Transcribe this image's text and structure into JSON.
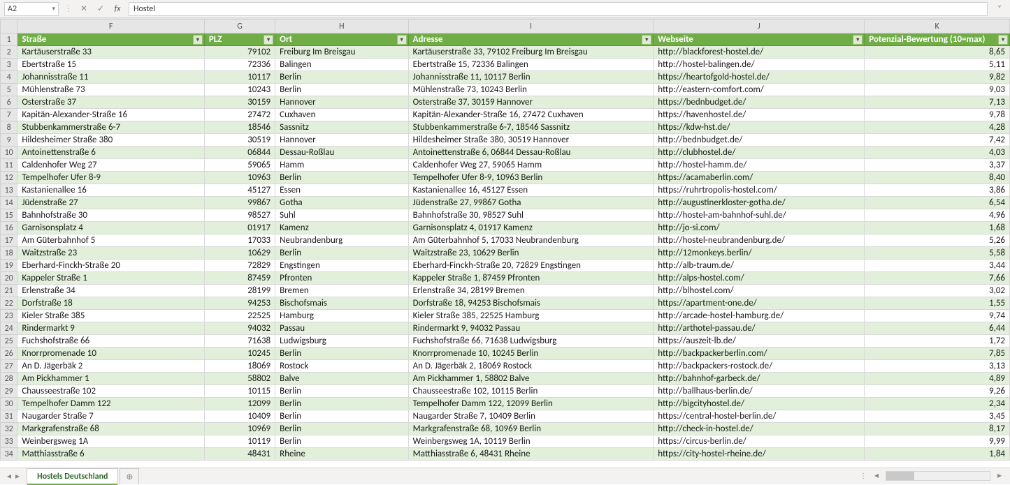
{
  "formula_bar": {
    "name_box": "A2",
    "cancel_glyph": "✕",
    "confirm_glyph": "✓",
    "fx_label": "fx",
    "value": "Hostel",
    "expand_glyph": "˅"
  },
  "column_letters": [
    "F",
    "G",
    "H",
    "I",
    "J",
    "K"
  ],
  "table_headers": {
    "F": "Straße",
    "G": "PLZ",
    "H": "Ort",
    "I": "Adresse",
    "J": "Webseite",
    "K": "Potenzial-Bewertung (10=max)"
  },
  "rows": [
    {
      "n": 2,
      "F": "Kartäuserstraße 33",
      "G": "79102",
      "H": "Freiburg Im Breisgau",
      "I": "Kartäuserstraße 33, 79102 Freiburg Im Breisgau",
      "J": "http://blackforest-hostel.de/",
      "K": "8,65"
    },
    {
      "n": 3,
      "F": "Ebertstraße 15",
      "G": "72336",
      "H": "Balingen",
      "I": "Ebertstraße 15, 72336 Balingen",
      "J": "http://hostel-balingen.de/",
      "K": "5,11"
    },
    {
      "n": 4,
      "F": "Johannisstraße 11",
      "G": "10117",
      "H": "Berlin",
      "I": "Johannisstraße 11, 10117 Berlin",
      "J": "https://heartofgold-hostel.de/",
      "K": "9,82"
    },
    {
      "n": 5,
      "F": "Mühlenstraße 73",
      "G": "10243",
      "H": "Berlin",
      "I": "Mühlenstraße 73, 10243 Berlin",
      "J": "http://eastern-comfort.com/",
      "K": "9,03"
    },
    {
      "n": 6,
      "F": "Osterstraße 37",
      "G": "30159",
      "H": "Hannover",
      "I": "Osterstraße 37, 30159 Hannover",
      "J": "https://bednbudget.de/",
      "K": "7,13"
    },
    {
      "n": 7,
      "F": "Kapitän-Alexander-Straße 16",
      "G": "27472",
      "H": "Cuxhaven",
      "I": "Kapitän-Alexander-Straße 16, 27472 Cuxhaven",
      "J": "https://havenhostel.de/",
      "K": "9,78"
    },
    {
      "n": 8,
      "F": "Stubbenkammerstraße 6-7",
      "G": "18546",
      "H": "Sassnitz",
      "I": "Stubbenkammerstraße 6-7, 18546 Sassnitz",
      "J": "https://kdw-hst.de/",
      "K": "4,28"
    },
    {
      "n": 9,
      "F": "Hildesheimer Straße 380",
      "G": "30519",
      "H": "Hannover",
      "I": "Hildesheimer Straße 380, 30519 Hannover",
      "J": "http://bednbudget.de/",
      "K": "7,42"
    },
    {
      "n": 10,
      "F": "Antoinettenstraße 6",
      "G": "06844",
      "H": "Dessau-Roßlau",
      "I": "Antoinettenstraße 6, 06844 Dessau-Roßlau",
      "J": "http://clubhostel.de/",
      "K": "4,03"
    },
    {
      "n": 11,
      "F": "Caldenhofer Weg 27",
      "G": "59065",
      "H": "Hamm",
      "I": "Caldenhofer Weg 27, 59065 Hamm",
      "J": "http://hostel-hamm.de/",
      "K": "3,37"
    },
    {
      "n": 12,
      "F": "Tempelhofer Ufer 8-9",
      "G": "10963",
      "H": "Berlin",
      "I": "Tempelhofer Ufer 8-9, 10963 Berlin",
      "J": "https://acamaberlin.com/",
      "K": "8,40"
    },
    {
      "n": 13,
      "F": "Kastanienallee 16",
      "G": "45127",
      "H": "Essen",
      "I": "Kastanienallee 16, 45127 Essen",
      "J": "https://ruhrtropolis-hostel.com/",
      "K": "3,86"
    },
    {
      "n": 14,
      "F": "Jüdenstraße 27",
      "G": "99867",
      "H": "Gotha",
      "I": "Jüdenstraße 27, 99867 Gotha",
      "J": "http://augustinerkloster-gotha.de/",
      "K": "6,54"
    },
    {
      "n": 15,
      "F": "Bahnhofstraße 30",
      "G": "98527",
      "H": "Suhl",
      "I": "Bahnhofstraße 30, 98527 Suhl",
      "J": "http://hostel-am-bahnhof-suhl.de/",
      "K": "4,96"
    },
    {
      "n": 16,
      "F": "Garnisonsplatz 4",
      "G": "01917",
      "H": "Kamenz",
      "I": "Garnisonsplatz 4, 01917 Kamenz",
      "J": "http://jo-si.com/",
      "K": "1,68"
    },
    {
      "n": 17,
      "F": "Am Güterbahnhof 5",
      "G": "17033",
      "H": "Neubrandenburg",
      "I": "Am Güterbahnhof 5, 17033 Neubrandenburg",
      "J": "http://hostel-neubrandenburg.de/",
      "K": "5,26"
    },
    {
      "n": 18,
      "F": "Waitzstraße 23",
      "G": "10629",
      "H": "Berlin",
      "I": "Waitzstraße 23, 10629 Berlin",
      "J": "http://12monkeys.berlin/",
      "K": "5,58"
    },
    {
      "n": 19,
      "F": "Eberhard-Finckh-Straße 20",
      "G": "72829",
      "H": "Engstingen",
      "I": "Eberhard-Finckh-Straße 20, 72829 Engstingen",
      "J": "http://alb-traum.de/",
      "K": "3,44"
    },
    {
      "n": 20,
      "F": "Kappeler Straße 1",
      "G": "87459",
      "H": "Pfronten",
      "I": "Kappeler Straße 1, 87459 Pfronten",
      "J": "http://alps-hostel.com/",
      "K": "7,66"
    },
    {
      "n": 21,
      "F": "Erlenstraße 34",
      "G": "28199",
      "H": "Bremen",
      "I": "Erlenstraße 34, 28199 Bremen",
      "J": "http://blhostel.com/",
      "K": "3,02"
    },
    {
      "n": 22,
      "F": "Dorfstraße 18",
      "G": "94253",
      "H": "Bischofsmais",
      "I": "Dorfstraße 18, 94253 Bischofsmais",
      "J": "https://apartment-one.de/",
      "K": "1,55"
    },
    {
      "n": 23,
      "F": "Kieler Straße 385",
      "G": "22525",
      "H": "Hamburg",
      "I": "Kieler Straße 385, 22525 Hamburg",
      "J": "http://arcade-hostel-hamburg.de/",
      "K": "9,74"
    },
    {
      "n": 24,
      "F": "Rindermarkt 9",
      "G": "94032",
      "H": "Passau",
      "I": "Rindermarkt 9, 94032 Passau",
      "J": "http://arthotel-passau.de/",
      "K": "6,44"
    },
    {
      "n": 25,
      "F": "Fuchshofstraße 66",
      "G": "71638",
      "H": "Ludwigsburg",
      "I": "Fuchshofstraße 66, 71638 Ludwigsburg",
      "J": "https://auszeit-lb.de/",
      "K": "1,72"
    },
    {
      "n": 26,
      "F": "Knorrpromenade 10",
      "G": "10245",
      "H": "Berlin",
      "I": "Knorrpromenade 10, 10245 Berlin",
      "J": "http://backpackerberlin.com/",
      "K": "7,85"
    },
    {
      "n": 27,
      "F": "An D. Jägerbäk 2",
      "G": "18069",
      "H": "Rostock",
      "I": "An D. Jägerbäk 2, 18069 Rostock",
      "J": "http://backpackers-rostock.de/",
      "K": "3,13"
    },
    {
      "n": 28,
      "F": "Am Pickhammer 1",
      "G": "58802",
      "H": "Balve",
      "I": "Am Pickhammer 1, 58802 Balve",
      "J": "http://bahnhof-garbeck.de/",
      "K": "4,89"
    },
    {
      "n": 29,
      "F": "Chausseestraße 102",
      "G": "10115",
      "H": "Berlin",
      "I": "Chausseestraße 102, 10115 Berlin",
      "J": "http://ballhaus-berlin.de/",
      "K": "9,26"
    },
    {
      "n": 30,
      "F": "Tempelhofer Damm 122",
      "G": "12099",
      "H": "Berlin",
      "I": "Tempelhofer Damm 122, 12099 Berlin",
      "J": "http://bigcityhostel.de/",
      "K": "2,34"
    },
    {
      "n": 31,
      "F": "Naugarder Straße 7",
      "G": "10409",
      "H": "Berlin",
      "I": "Naugarder Straße 7, 10409 Berlin",
      "J": "https://central-hostel-berlin.de/",
      "K": "3,45"
    },
    {
      "n": 32,
      "F": "Markgrafenstraße 68",
      "G": "10969",
      "H": "Berlin",
      "I": "Markgrafenstraße 68, 10969 Berlin",
      "J": "http://check-in-hostel.de/",
      "K": "8,17"
    },
    {
      "n": 33,
      "F": "Weinbergsweg 1A",
      "G": "10119",
      "H": "Berlin",
      "I": "Weinbergsweg 1A, 10119 Berlin",
      "J": "https://circus-berlin.de/",
      "K": "9,99"
    },
    {
      "n": 34,
      "F": "Matthiasstraße 6",
      "G": "48431",
      "H": "Rheine",
      "I": "Matthiasstraße 6, 48431 Rheine",
      "J": "https://city-hostel-rheine.de/",
      "K": "1,84"
    }
  ],
  "sheet_tabs": {
    "active": "Hostels Deutschland",
    "add_glyph": "⊕"
  },
  "colors": {
    "header_bg": "#70ad47",
    "header_text": "#ffffff",
    "band_bg": "#e2efda",
    "grid_line": "#d9d9d9",
    "colhdr_bg": "#e6e6e6"
  }
}
